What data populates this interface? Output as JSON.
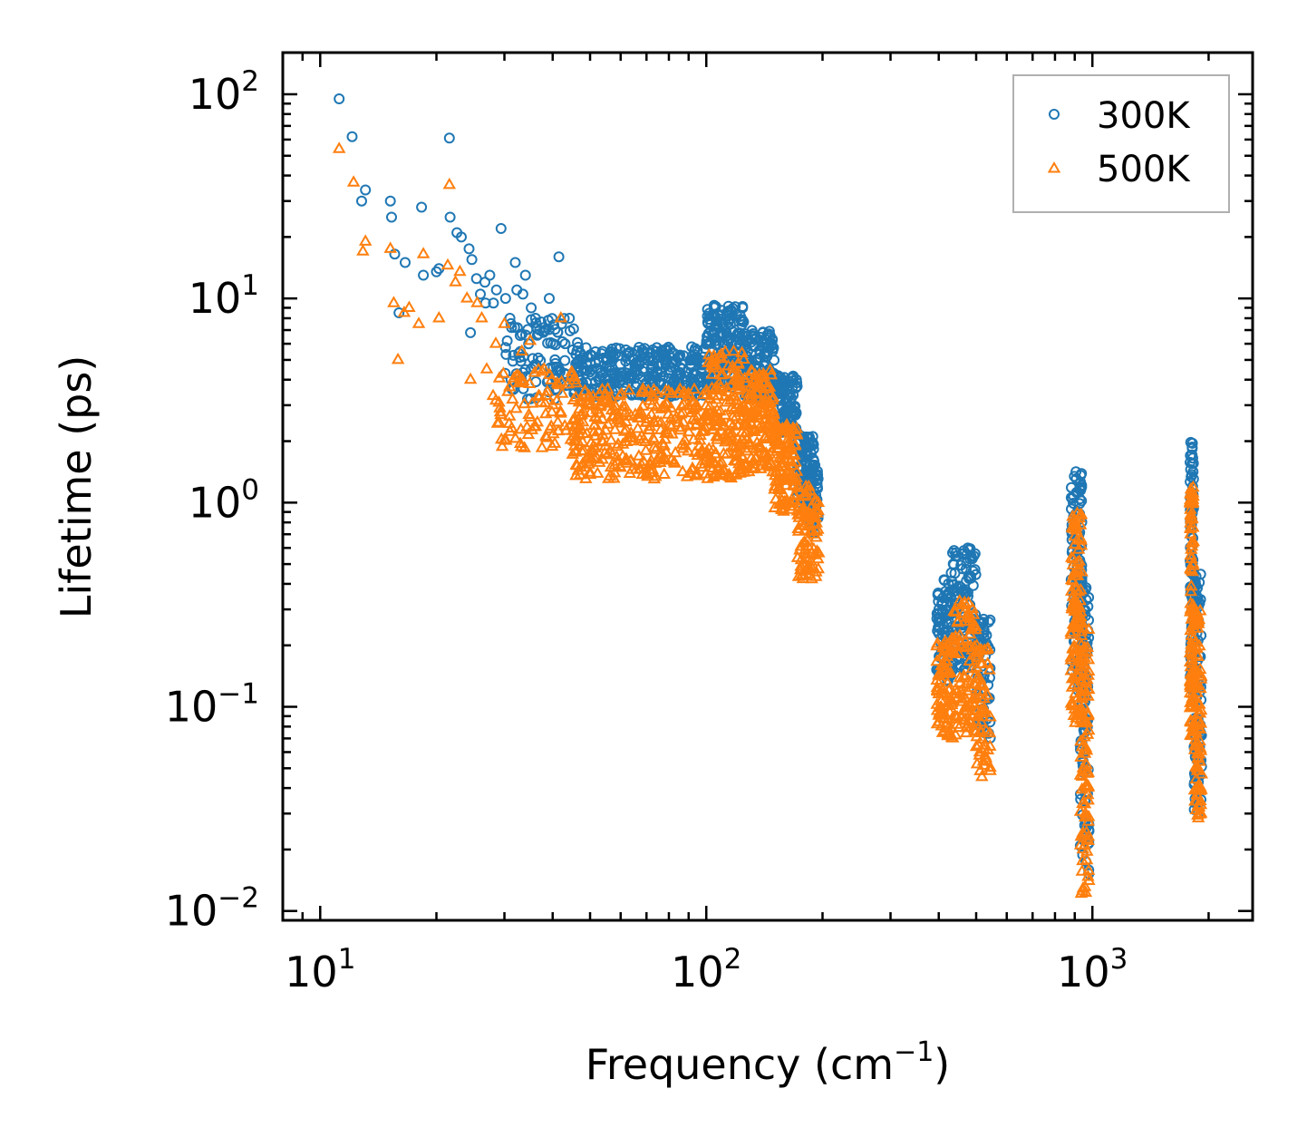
{
  "chart_data": {
    "type": "scatter",
    "title": "",
    "xlabel": "Frequency (cm",
    "xlabel_sup": "−1",
    "xlabel_end": ")",
    "ylabel": "Lifetime (ps)",
    "xscale": "log",
    "yscale": "log",
    "xlim": [
      8,
      2600
    ],
    "ylim": [
      0.009,
      160
    ],
    "x_ticks": [
      {
        "value": 10,
        "base": "10",
        "exp": "1"
      },
      {
        "value": 100,
        "base": "10",
        "exp": "2"
      },
      {
        "value": 1000,
        "base": "10",
        "exp": "3"
      }
    ],
    "y_ticks": [
      {
        "value": 0.01,
        "base": "10",
        "exp": "−2"
      },
      {
        "value": 0.1,
        "base": "10",
        "exp": "−1"
      },
      {
        "value": 1,
        "base": "10",
        "exp": "0"
      },
      {
        "value": 10,
        "base": "10",
        "exp": "1"
      },
      {
        "value": 100,
        "base": "10",
        "exp": "2"
      }
    ],
    "legend_position": "top-right",
    "series": [
      {
        "name": "300K",
        "color": "#1f77b4",
        "marker": "circle",
        "points": [
          [
            11.2,
            95
          ],
          [
            12.1,
            62
          ],
          [
            12.8,
            30
          ],
          [
            13.1,
            34
          ],
          [
            15.2,
            30
          ],
          [
            15.3,
            25
          ],
          [
            15.6,
            16.5
          ],
          [
            16.0,
            8.5
          ],
          [
            16.6,
            15
          ],
          [
            18.3,
            28
          ],
          [
            18.5,
            13
          ],
          [
            20.0,
            13.5
          ],
          [
            20.3,
            14
          ],
          [
            21.6,
            61
          ],
          [
            21.7,
            25
          ],
          [
            22.6,
            21
          ],
          [
            23.2,
            20
          ],
          [
            24.3,
            17.5
          ],
          [
            24.7,
            15.5
          ],
          [
            25.4,
            12.5
          ],
          [
            26.0,
            10.5
          ],
          [
            26.7,
            12
          ],
          [
            26.8,
            9.5
          ],
          [
            27.5,
            13
          ],
          [
            28.1,
            9.5
          ],
          [
            28.6,
            11
          ],
          [
            29.4,
            22
          ],
          [
            30.2,
            10
          ],
          [
            31.0,
            8
          ],
          [
            32.0,
            15
          ],
          [
            32.3,
            11
          ],
          [
            33.5,
            10.5
          ],
          [
            34.0,
            13
          ],
          [
            35.2,
            9
          ],
          [
            36.1,
            8
          ],
          [
            37.0,
            7
          ],
          [
            39.2,
            10
          ],
          [
            41.5,
            16
          ],
          [
            42.2,
            7.5
          ],
          [
            44.2,
            8
          ],
          [
            24.5,
            6.8
          ],
          [
            30.5,
            6.2
          ],
          [
            33.0,
            5.5
          ],
          [
            36.5,
            6.6
          ],
          [
            38.0,
            7.2
          ]
        ],
        "bands": [
          {
            "x_from": 30,
            "x_to": 47,
            "y_lo": 3.2,
            "y_hi": 8.0,
            "n": 90
          },
          {
            "x_from": 45,
            "x_to": 100,
            "y_lo": 3.3,
            "y_hi": 5.8,
            "n": 320
          },
          {
            "x_from": 100,
            "x_to": 125,
            "y_lo": 3.6,
            "y_hi": 9.5,
            "n": 170
          },
          {
            "x_from": 125,
            "x_to": 150,
            "y_lo": 3.2,
            "y_hi": 7.0,
            "n": 140
          },
          {
            "x_from": 150,
            "x_to": 172,
            "y_lo": 2.2,
            "y_hi": 4.2,
            "n": 110
          },
          {
            "x_from": 172,
            "x_to": 190,
            "y_lo": 1.0,
            "y_hi": 2.2,
            "n": 90
          },
          {
            "x_from": 186,
            "x_to": 195,
            "y_lo": 0.7,
            "y_hi": 1.6,
            "n": 50
          },
          {
            "x_from": 395,
            "x_to": 430,
            "y_lo": 0.13,
            "y_hi": 0.42,
            "n": 70
          },
          {
            "x_from": 430,
            "x_to": 500,
            "y_lo": 0.15,
            "y_hi": 0.6,
            "n": 110
          },
          {
            "x_from": 500,
            "x_to": 545,
            "y_lo": 0.07,
            "y_hi": 0.27,
            "n": 60
          },
          {
            "x_from": 880,
            "x_to": 940,
            "y_lo": 0.12,
            "y_hi": 1.5,
            "n": 120
          },
          {
            "x_from": 930,
            "x_to": 980,
            "y_lo": 0.015,
            "y_hi": 0.42,
            "n": 90
          },
          {
            "x_from": 1790,
            "x_to": 1830,
            "y_lo": 0.12,
            "y_hi": 2.0,
            "n": 100
          },
          {
            "x_from": 1830,
            "x_to": 1920,
            "y_lo": 0.03,
            "y_hi": 0.45,
            "n": 90
          }
        ]
      },
      {
        "name": "500K",
        "color": "#ff7f0e",
        "marker": "triangle",
        "points": [
          [
            11.2,
            54
          ],
          [
            12.2,
            37
          ],
          [
            12.9,
            17
          ],
          [
            13.1,
            19
          ],
          [
            15.2,
            17.5
          ],
          [
            15.5,
            9.5
          ],
          [
            15.9,
            5
          ],
          [
            16.5,
            8.5
          ],
          [
            17.0,
            9
          ],
          [
            18.0,
            7.5
          ],
          [
            18.5,
            16.5
          ],
          [
            20.3,
            8
          ],
          [
            21.4,
            14.5
          ],
          [
            21.6,
            36
          ],
          [
            22.4,
            12
          ],
          [
            23.0,
            13.5
          ],
          [
            24.0,
            10
          ],
          [
            24.5,
            4
          ],
          [
            25.5,
            9.5
          ],
          [
            26.2,
            8
          ],
          [
            27.0,
            4.5
          ],
          [
            28.5,
            6
          ],
          [
            30.0,
            7.5
          ],
          [
            31.5,
            3.2
          ],
          [
            33.3,
            5.5
          ],
          [
            35.0,
            6.2
          ],
          [
            38.0,
            4.5
          ],
          [
            40.0,
            3
          ],
          [
            42.0,
            8
          ]
        ],
        "bands": [
          {
            "x_from": 28,
            "x_to": 47,
            "y_lo": 1.8,
            "y_hi": 4.5,
            "n": 90
          },
          {
            "x_from": 45,
            "x_to": 100,
            "y_lo": 1.3,
            "y_hi": 3.6,
            "n": 320
          },
          {
            "x_from": 100,
            "x_to": 125,
            "y_lo": 1.3,
            "y_hi": 5.5,
            "n": 170
          },
          {
            "x_from": 125,
            "x_to": 150,
            "y_lo": 1.4,
            "y_hi": 4.5,
            "n": 140
          },
          {
            "x_from": 150,
            "x_to": 172,
            "y_lo": 0.9,
            "y_hi": 2.4,
            "n": 110
          },
          {
            "x_from": 172,
            "x_to": 196,
            "y_lo": 0.42,
            "y_hi": 1.2,
            "n": 90
          },
          {
            "x_from": 395,
            "x_to": 430,
            "y_lo": 0.07,
            "y_hi": 0.21,
            "n": 70
          },
          {
            "x_from": 430,
            "x_to": 500,
            "y_lo": 0.07,
            "y_hi": 0.33,
            "n": 110
          },
          {
            "x_from": 500,
            "x_to": 545,
            "y_lo": 0.045,
            "y_hi": 0.2,
            "n": 60
          },
          {
            "x_from": 880,
            "x_to": 940,
            "y_lo": 0.08,
            "y_hi": 0.9,
            "n": 120
          },
          {
            "x_from": 930,
            "x_to": 980,
            "y_lo": 0.012,
            "y_hi": 0.25,
            "n": 90
          },
          {
            "x_from": 1790,
            "x_to": 1830,
            "y_lo": 0.07,
            "y_hi": 1.2,
            "n": 100
          },
          {
            "x_from": 1830,
            "x_to": 1920,
            "y_lo": 0.028,
            "y_hi": 0.3,
            "n": 90
          }
        ]
      }
    ]
  }
}
